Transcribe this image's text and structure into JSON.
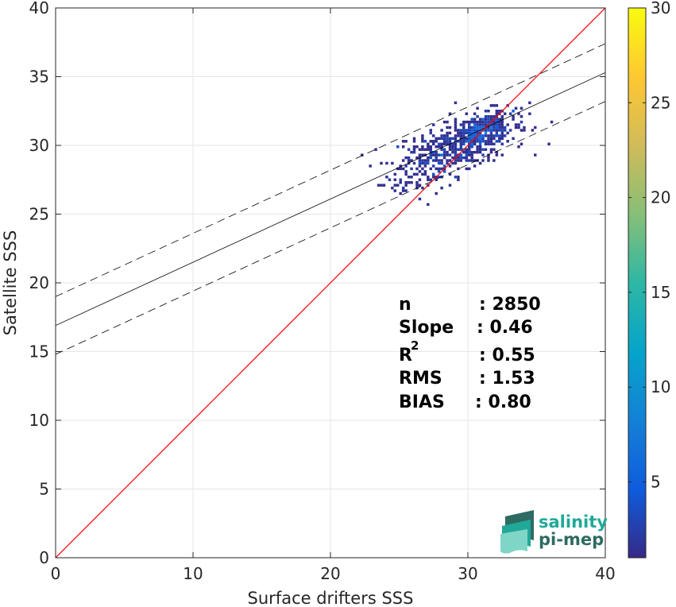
{
  "chart_data": {
    "type": "scatter",
    "title": "",
    "xlabel": "Surface drifters SSS",
    "ylabel": "Satellite SSS",
    "xlim": [
      0,
      40
    ],
    "ylim": [
      0,
      40
    ],
    "xticks": [
      "0",
      "10",
      "20",
      "30",
      "40"
    ],
    "yticks": [
      "0",
      "5",
      "10",
      "15",
      "20",
      "25",
      "30",
      "35",
      "40"
    ],
    "grid": true,
    "identity_line": {
      "x": [
        0,
        40
      ],
      "y": [
        0,
        40
      ],
      "color": "#ff0000"
    },
    "regression_line": {
      "intercept": 16.9,
      "slope": 0.46,
      "x_range": [
        0,
        40
      ],
      "color": "#000000"
    },
    "confidence_band": {
      "offset": 2.1,
      "style": "dashed"
    },
    "density_clusters": [
      {
        "cx": 30.0,
        "cy": 30.3,
        "sx": 2.2,
        "sy": 1.1,
        "n": 380,
        "corr": 0.55
      },
      {
        "cx": 31.0,
        "cy": 31.0,
        "sx": 0.9,
        "sy": 0.7,
        "n": 220,
        "corr": 0.6
      },
      {
        "cx": 27.5,
        "cy": 29.0,
        "sx": 1.6,
        "sy": 1.2,
        "n": 140,
        "corr": 0.2
      },
      {
        "cx": 25.0,
        "cy": 27.5,
        "sx": 1.2,
        "sy": 0.7,
        "n": 30,
        "corr": 0.0
      }
    ],
    "colorbar": {
      "min": 1,
      "max": 30,
      "ticks": [
        "5",
        "10",
        "15",
        "20",
        "25",
        "30"
      ],
      "colormap": [
        "#352a87",
        "#0f5cdd",
        "#1481d6",
        "#06a4ca",
        "#2eb7a4",
        "#87bf77",
        "#d1bb59",
        "#fec832",
        "#f9fb0e"
      ]
    },
    "stats": [
      {
        "label": "n",
        "value": ": 2850"
      },
      {
        "label": "Slope",
        "value": ": 0.46"
      },
      {
        "label": "R",
        "sup": "2",
        "value": ": 0.55"
      },
      {
        "label": "RMS",
        "value": ": 1.53"
      },
      {
        "label": "BIAS",
        "value": ": 0.80"
      }
    ]
  },
  "logo": {
    "line1": "salinity",
    "line2": "pi-mep",
    "colors": {
      "primary": "#20a898",
      "secondary": "#2d6b62",
      "light": "#7fd6c6"
    }
  }
}
